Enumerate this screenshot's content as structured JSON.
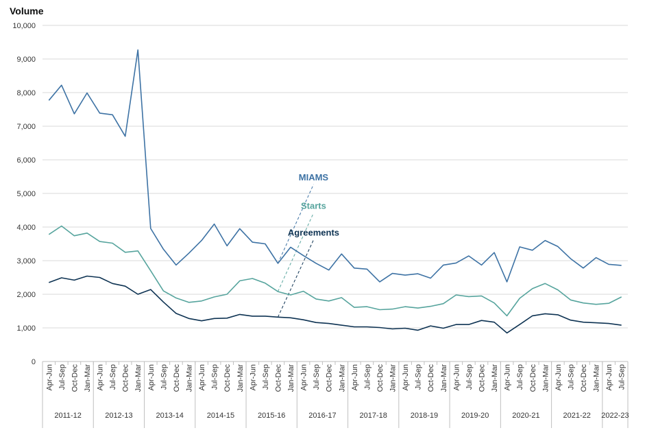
{
  "chart_data": {
    "type": "line",
    "ylabel": "Volume",
    "ylim": [
      0,
      10000
    ],
    "yticks": [
      0,
      1000,
      2000,
      3000,
      4000,
      5000,
      6000,
      7000,
      8000,
      9000,
      10000
    ],
    "ytick_labels": [
      "0",
      "1,000",
      "2,000",
      "3,000",
      "4,000",
      "5,000",
      "6,000",
      "7,000",
      "8,000",
      "9,000",
      "10,000"
    ],
    "grid": "horizontal",
    "x": [
      "Apr-Jun",
      "Jul-Sep",
      "Oct-Dec",
      "Jan-Mar",
      "Apr-Jun",
      "Jul-Sep",
      "Oct-Dec",
      "Jan-Mar",
      "Apr-Jun",
      "Jul-Sep",
      "Oct-Dec",
      "Jan-Mar",
      "Apr-Jun",
      "Jul-Sep",
      "Oct-Dec",
      "Jan-Mar",
      "Apr-Jun",
      "Jul-Sep",
      "Oct-Dec",
      "Jan-Mar",
      "Apr-Jun",
      "Jul-Sep",
      "Oct-Dec",
      "Jan-Mar",
      "Apr-Jun",
      "Jul-Sep",
      "Oct-Dec",
      "Jan-Mar",
      "Apr-Jun",
      "Jul-Sep",
      "Oct-Dec",
      "Jan-Mar",
      "Apr-Jun",
      "Jul-Sep",
      "Oct-Dec",
      "Jan-Mar",
      "Apr-Jun",
      "Jul-Sep",
      "Oct-Dec",
      "Jan-Mar",
      "Apr-Jun",
      "Jul-Sep",
      "Oct-Dec",
      "Jan-Mar",
      "Apr-Jun",
      "Jul-Sep"
    ],
    "year_groups": [
      {
        "label": "2011-12",
        "quarters": 4
      },
      {
        "label": "2012-13",
        "quarters": 4
      },
      {
        "label": "2013-14",
        "quarters": 4
      },
      {
        "label": "2014-15",
        "quarters": 4
      },
      {
        "label": "2015-16",
        "quarters": 4
      },
      {
        "label": "2016-17",
        "quarters": 4
      },
      {
        "label": "2017-18",
        "quarters": 4
      },
      {
        "label": "2018-19",
        "quarters": 4
      },
      {
        "label": "2019-20",
        "quarters": 4
      },
      {
        "label": "2020-21",
        "quarters": 4
      },
      {
        "label": "2021-22",
        "quarters": 4
      },
      {
        "label": "2022-23",
        "quarters": 2
      }
    ],
    "series": [
      {
        "name": "MIAMS",
        "color": "#3d72a4",
        "label_anchor_index": 18,
        "label_value": 5350,
        "values": [
          7770,
          8220,
          7370,
          7990,
          7390,
          7340,
          6700,
          9270,
          3960,
          3340,
          2870,
          3220,
          3600,
          4090,
          3440,
          3950,
          3550,
          3500,
          2920,
          3400,
          3150,
          2920,
          2720,
          3200,
          2780,
          2750,
          2370,
          2620,
          2570,
          2610,
          2480,
          2870,
          2930,
          3140,
          2870,
          3240,
          2370,
          3410,
          3310,
          3600,
          3420,
          3060,
          2780,
          3090,
          2890,
          2860
        ]
      },
      {
        "name": "Starts",
        "color": "#56a49d",
        "label_anchor_index": 18,
        "label_value": 4500,
        "values": [
          3780,
          4030,
          3740,
          3820,
          3570,
          3520,
          3250,
          3290,
          2700,
          2100,
          1890,
          1760,
          1800,
          1920,
          2000,
          2400,
          2470,
          2330,
          2080,
          1980,
          2090,
          1860,
          1800,
          1900,
          1610,
          1630,
          1540,
          1560,
          1630,
          1590,
          1640,
          1720,
          1980,
          1930,
          1950,
          1740,
          1360,
          1880,
          2170,
          2320,
          2130,
          1830,
          1740,
          1700,
          1730,
          1920
        ]
      },
      {
        "name": "Agreements",
        "color": "#0d3252",
        "label_anchor_index": 18,
        "label_value": 3700,
        "values": [
          2350,
          2490,
          2420,
          2540,
          2500,
          2320,
          2240,
          2000,
          2140,
          1770,
          1430,
          1280,
          1210,
          1280,
          1290,
          1400,
          1350,
          1350,
          1320,
          1300,
          1240,
          1160,
          1130,
          1080,
          1030,
          1030,
          1010,
          970,
          990,
          930,
          1060,
          990,
          1100,
          1100,
          1220,
          1170,
          850,
          1100,
          1360,
          1420,
          1390,
          1230,
          1170,
          1150,
          1130,
          1080
        ]
      }
    ]
  }
}
